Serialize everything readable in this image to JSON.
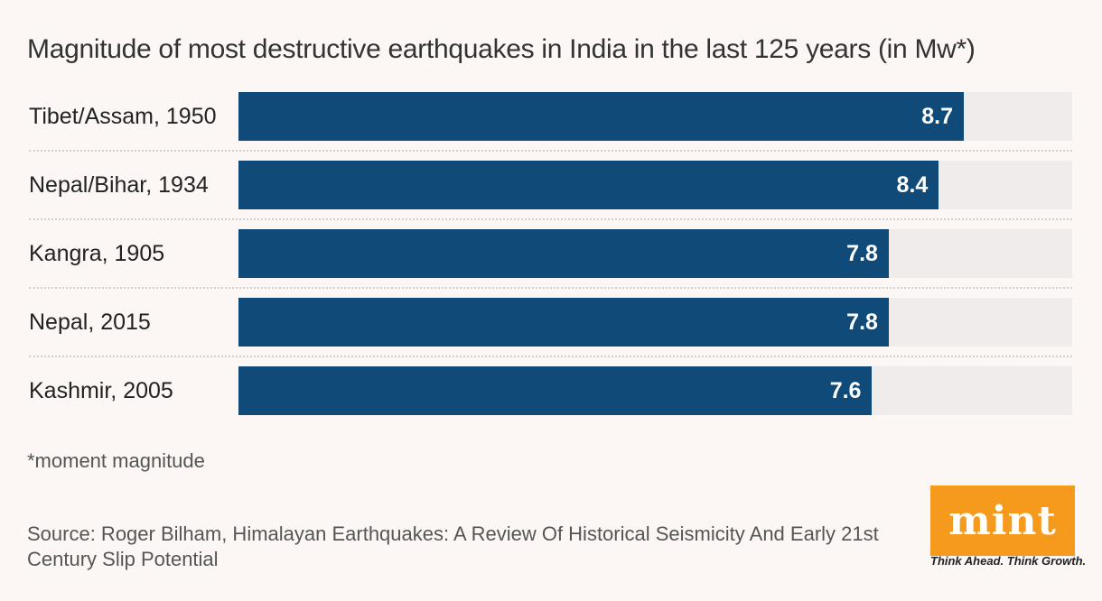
{
  "chart_data": {
    "type": "bar",
    "orientation": "horizontal",
    "title": "Magnitude of most destructive earthquakes in India in the last 125 years (in Mw*)",
    "categories": [
      "Tibet/Assam, 1950",
      "Nepal/Bihar, 1934",
      "Kangra, 1905",
      "Nepal, 2015",
      "Kashmir, 2005"
    ],
    "values": [
      8.7,
      8.4,
      7.8,
      7.8,
      7.6
    ],
    "value_labels": [
      "8.7",
      "8.4",
      "7.8",
      "7.8",
      "7.6"
    ],
    "xlim": [
      0,
      10
    ],
    "bar_color": "#0f4a78",
    "track_color": "#f1ecec",
    "grid": false,
    "legend": "none"
  },
  "footnote": "*moment magnitude",
  "source": "Source: Roger Bilham, Himalayan Earthquakes: A Review Of Historical Seismicity And Early 21st Century Slip Potential",
  "logo": {
    "text": "mint",
    "tagline": "Think Ahead. Think Growth.",
    "color": "#f59a1d"
  }
}
